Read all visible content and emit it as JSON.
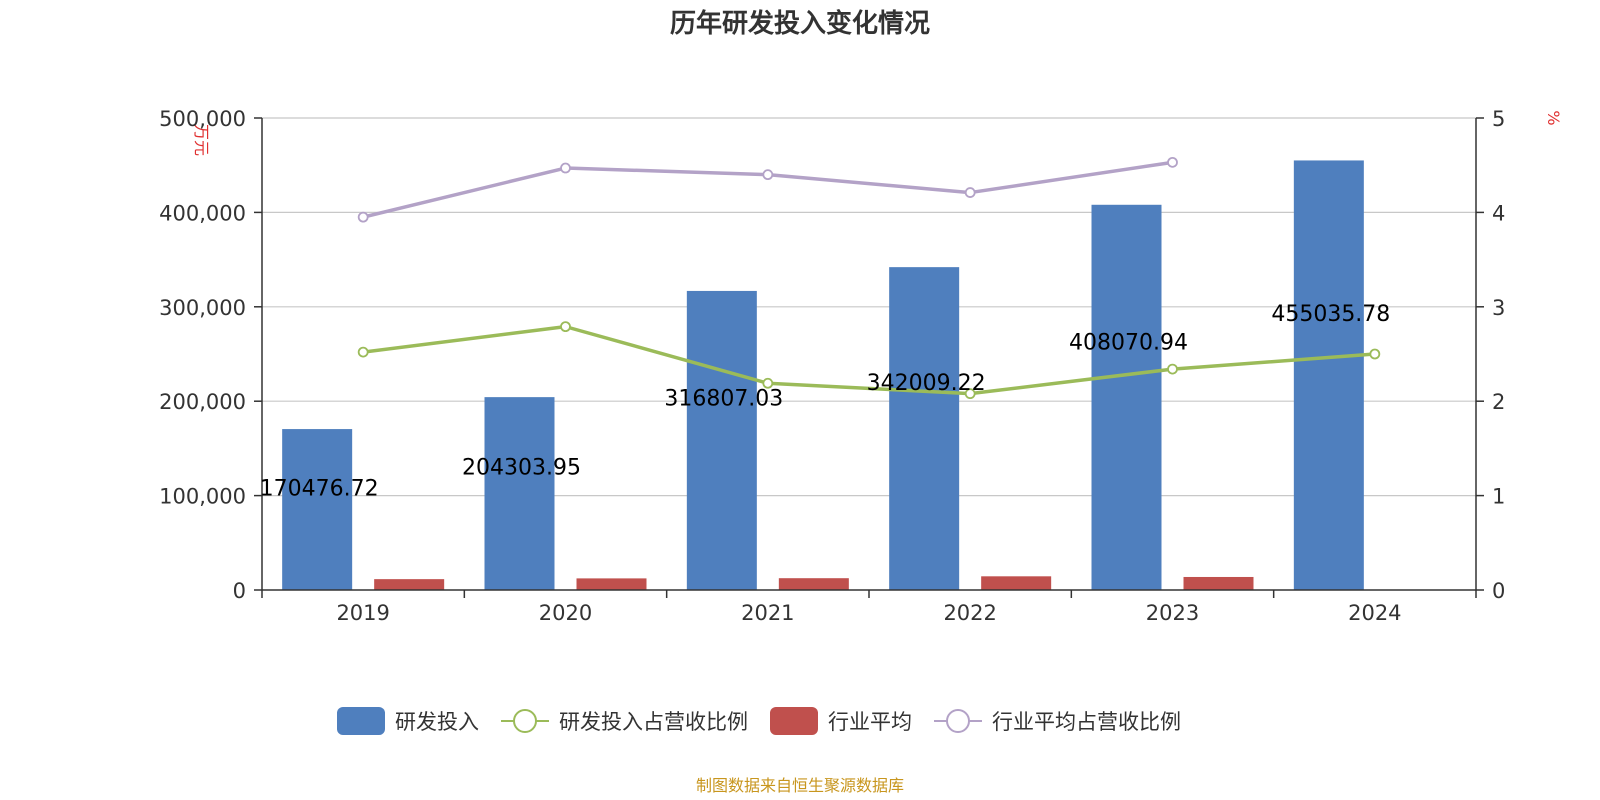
{
  "chart_data": {
    "type": "bar",
    "title": "历年研发投入变化情况",
    "categories": [
      "2019",
      "2020",
      "2021",
      "2022",
      "2023",
      "2024"
    ],
    "y_left": {
      "label": "万元",
      "ylim": [
        0,
        500000
      ],
      "ticks": [
        0,
        100000,
        200000,
        300000,
        400000,
        500000
      ],
      "tick_labels": [
        "0",
        "100,000",
        "200,000",
        "300,000",
        "400,000",
        "500,000"
      ]
    },
    "y_right": {
      "label": "%",
      "ylim": [
        0,
        5
      ],
      "ticks": [
        0,
        1,
        2,
        3,
        4,
        5
      ],
      "tick_labels": [
        "0",
        "1",
        "2",
        "3",
        "4",
        "5"
      ]
    },
    "series": [
      {
        "name": "研发投入",
        "type": "bar",
        "axis": "left",
        "color": "#4f7fbe",
        "values": [
          170476.72,
          204303.95,
          316807.03,
          342009.22,
          408070.94,
          455035.78
        ],
        "data_labels": [
          "170476.72",
          "204303.95",
          "316807.03",
          "342009.22",
          "408070.94",
          "455035.78"
        ]
      },
      {
        "name": "研发投入占营收比例",
        "type": "line",
        "axis": "right",
        "color": "#9bbb59",
        "values": [
          2.52,
          2.79,
          2.19,
          2.08,
          2.34,
          2.5
        ]
      },
      {
        "name": "行业平均",
        "type": "bar",
        "axis": "left",
        "color": "#c0504d",
        "values": [
          11500,
          12300,
          12500,
          14500,
          13800,
          null
        ]
      },
      {
        "name": "行业平均占营收比例",
        "type": "line",
        "axis": "right",
        "color": "#b3a2c7",
        "values": [
          3.95,
          4.47,
          4.4,
          4.21,
          4.53,
          null
        ]
      }
    ],
    "grid": true,
    "legend_position": "bottom"
  },
  "source": "制图数据来自恒生聚源数据库"
}
